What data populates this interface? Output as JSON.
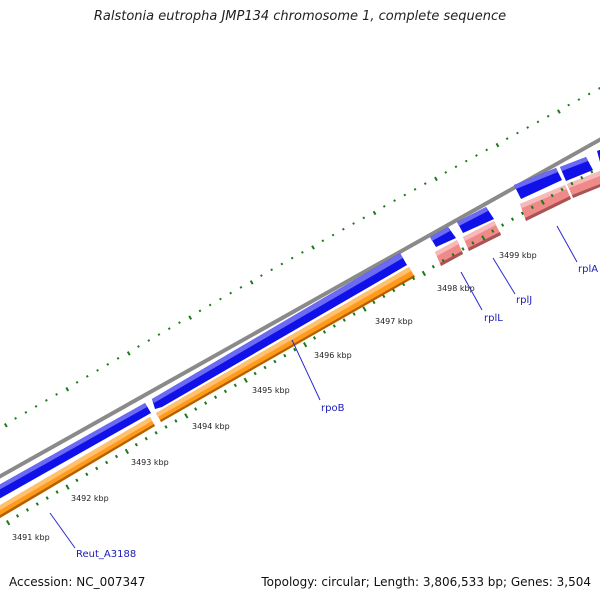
{
  "title": "Ralstonia eutropha JMP134 chromosome 1, complete sequence",
  "footer": {
    "accession": "Accession: NC_007347",
    "summary": "Topology: circular; Length: 3,806,533 bp; Genes: 3,504"
  },
  "ruler": {
    "unit": "kbp",
    "ticks": [
      {
        "label": "3491 kbp",
        "position_kbp": 3491
      },
      {
        "label": "3492 kbp",
        "position_kbp": 3492
      },
      {
        "label": "3493 kbp",
        "position_kbp": 3493
      },
      {
        "label": "3494 kbp",
        "position_kbp": 3494
      },
      {
        "label": "3495 kbp",
        "position_kbp": 3495
      },
      {
        "label": "3496 kbp",
        "position_kbp": 3496
      },
      {
        "label": "3497 kbp",
        "position_kbp": 3497
      },
      {
        "label": "3498 kbp",
        "position_kbp": 3498
      },
      {
        "label": "3499 kbp",
        "position_kbp": 3499
      }
    ]
  },
  "genes": [
    {
      "label": "Reut_A3188"
    },
    {
      "label": "rpoB"
    },
    {
      "label": "rplL"
    },
    {
      "label": "rplJ"
    },
    {
      "label": "rplA"
    }
  ],
  "colors": {
    "cds_forward": "#1010e8",
    "cds_forward_light": "#6a6af5",
    "rna_orange": "#ff9a1a",
    "rna_orange_light": "#ffc070",
    "rna_orange_dark": "#b45f00",
    "pink": "#f08a8a",
    "pink_light": "#f7b9b9",
    "pink_dark": "#a95454",
    "backbone": "#8a8a8a",
    "tick_green": "#1b7a1b",
    "leader": "#2a2ad0",
    "label_blue": "#1a1ab8"
  }
}
